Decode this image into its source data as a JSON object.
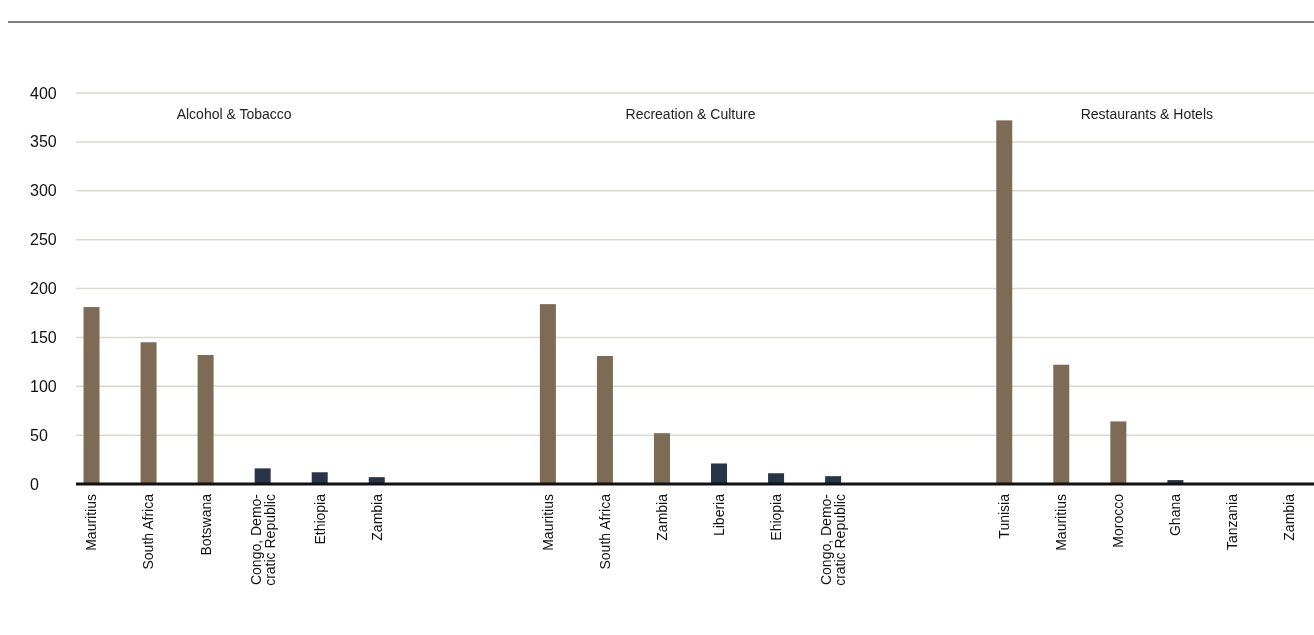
{
  "chart_data": {
    "type": "bar",
    "categories": [
      "Mauritius",
      "South Africa",
      "Botswana",
      "Congo, Demo-\ncratic Republic",
      "Ethiopia",
      "Zambia",
      null,
      null,
      "Mauritius",
      "South Africa",
      "Zambia",
      "Liberia",
      "Ehiopia",
      "Congo, Demo-\ncratic Republic",
      null,
      null,
      "Tunisia",
      "Mauritius",
      "Morocco",
      "Ghana",
      "Tanzania",
      "Zambia"
    ],
    "values": [
      181,
      145,
      132,
      16,
      12,
      7,
      null,
      null,
      184,
      131,
      52,
      21,
      11,
      8,
      null,
      null,
      372,
      122,
      64,
      4,
      0,
      0
    ],
    "colors": [
      "#7d6b55",
      "#7d6b55",
      "#7d6b55",
      "#27344a",
      "#27344a",
      "#27344a",
      null,
      null,
      "#7d6b55",
      "#7d6b55",
      "#7d6b55",
      "#27344a",
      "#27344a",
      "#27344a",
      null,
      null,
      "#7d6b55",
      "#7d6b55",
      "#7d6b55",
      "#27344a",
      "#27344a",
      "#27344a"
    ],
    "annotations": [
      "Alcohol & Tobacco",
      "Recreation & Culture",
      "Restaurants & Hotels"
    ],
    "ylim": [
      0,
      400
    ],
    "yticks": [
      0,
      50,
      100,
      150,
      200,
      250,
      300,
      350,
      400
    ],
    "grid": "y"
  }
}
